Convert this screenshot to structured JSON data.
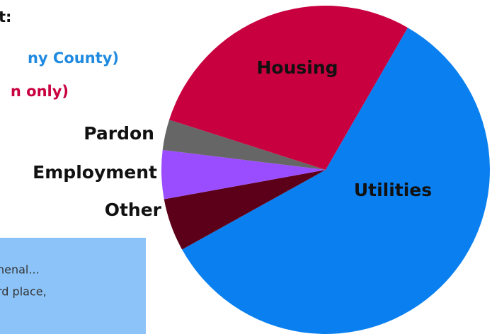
{
  "header": {
    "title": "t:",
    "line1": "ny County)",
    "line2": "n only)"
  },
  "note": {
    "lines": [
      "henal...",
      "rd place,"
    ]
  },
  "chart_data": {
    "type": "pie",
    "categories": [
      "Utilities",
      "Other",
      "Employment",
      "Pardon",
      "Housing"
    ],
    "values": [
      58.6,
      5.2,
      4.8,
      3,
      28.4
    ],
    "colors": [
      "#0a80f0",
      "#5c0019",
      "#9a4dff",
      "#666666",
      "#c8003f"
    ]
  }
}
